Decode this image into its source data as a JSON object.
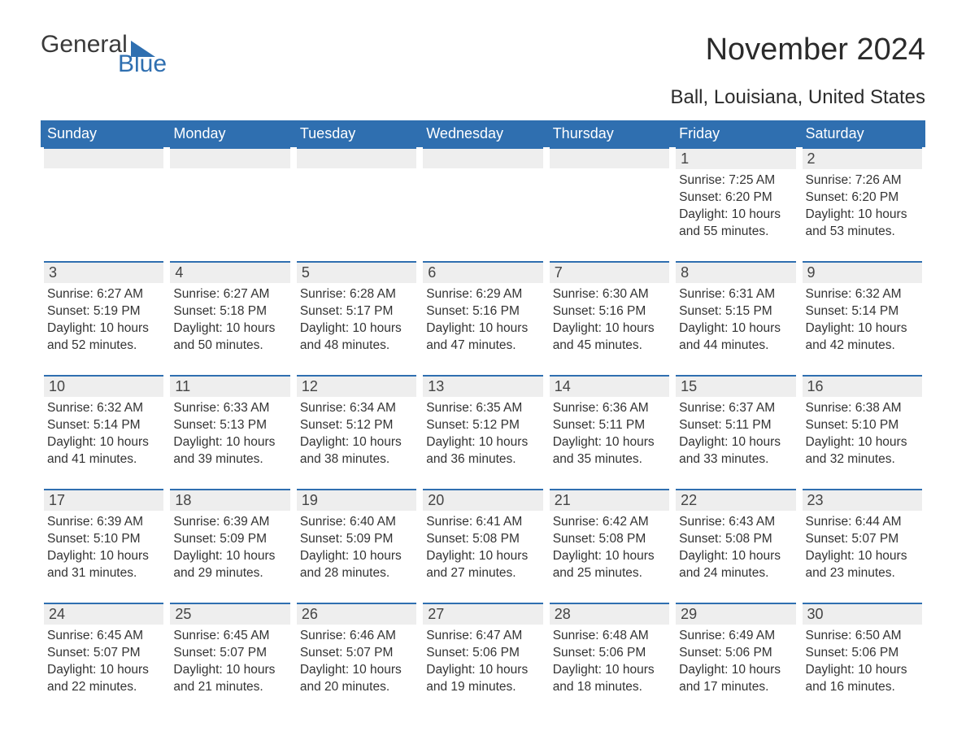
{
  "logo": {
    "word1": "General",
    "word2": "Blue"
  },
  "title": "November 2024",
  "location": "Ball, Louisiana, United States",
  "colors": {
    "header_bg": "#2f6fb0",
    "header_text": "#ffffff",
    "daynum_bg": "#eeeeee",
    "border": "#2f6fb0",
    "page_bg": "#ffffff",
    "text": "#333333"
  },
  "typography": {
    "title_fontsize": 38,
    "location_fontsize": 24,
    "header_fontsize": 18,
    "body_fontsize": 15.5
  },
  "layout": {
    "columns": 7,
    "rows": 5
  },
  "weekdays": [
    "Sunday",
    "Monday",
    "Tuesday",
    "Wednesday",
    "Thursday",
    "Friday",
    "Saturday"
  ],
  "weeks": [
    [
      null,
      null,
      null,
      null,
      null,
      {
        "day": "1",
        "sunrise": "7:25 AM",
        "sunset": "6:20 PM",
        "daylight": "10 hours and 55 minutes."
      },
      {
        "day": "2",
        "sunrise": "7:26 AM",
        "sunset": "6:20 PM",
        "daylight": "10 hours and 53 minutes."
      }
    ],
    [
      {
        "day": "3",
        "sunrise": "6:27 AM",
        "sunset": "5:19 PM",
        "daylight": "10 hours and 52 minutes."
      },
      {
        "day": "4",
        "sunrise": "6:27 AM",
        "sunset": "5:18 PM",
        "daylight": "10 hours and 50 minutes."
      },
      {
        "day": "5",
        "sunrise": "6:28 AM",
        "sunset": "5:17 PM",
        "daylight": "10 hours and 48 minutes."
      },
      {
        "day": "6",
        "sunrise": "6:29 AM",
        "sunset": "5:16 PM",
        "daylight": "10 hours and 47 minutes."
      },
      {
        "day": "7",
        "sunrise": "6:30 AM",
        "sunset": "5:16 PM",
        "daylight": "10 hours and 45 minutes."
      },
      {
        "day": "8",
        "sunrise": "6:31 AM",
        "sunset": "5:15 PM",
        "daylight": "10 hours and 44 minutes."
      },
      {
        "day": "9",
        "sunrise": "6:32 AM",
        "sunset": "5:14 PM",
        "daylight": "10 hours and 42 minutes."
      }
    ],
    [
      {
        "day": "10",
        "sunrise": "6:32 AM",
        "sunset": "5:14 PM",
        "daylight": "10 hours and 41 minutes."
      },
      {
        "day": "11",
        "sunrise": "6:33 AM",
        "sunset": "5:13 PM",
        "daylight": "10 hours and 39 minutes."
      },
      {
        "day": "12",
        "sunrise": "6:34 AM",
        "sunset": "5:12 PM",
        "daylight": "10 hours and 38 minutes."
      },
      {
        "day": "13",
        "sunrise": "6:35 AM",
        "sunset": "5:12 PM",
        "daylight": "10 hours and 36 minutes."
      },
      {
        "day": "14",
        "sunrise": "6:36 AM",
        "sunset": "5:11 PM",
        "daylight": "10 hours and 35 minutes."
      },
      {
        "day": "15",
        "sunrise": "6:37 AM",
        "sunset": "5:11 PM",
        "daylight": "10 hours and 33 minutes."
      },
      {
        "day": "16",
        "sunrise": "6:38 AM",
        "sunset": "5:10 PM",
        "daylight": "10 hours and 32 minutes."
      }
    ],
    [
      {
        "day": "17",
        "sunrise": "6:39 AM",
        "sunset": "5:10 PM",
        "daylight": "10 hours and 31 minutes."
      },
      {
        "day": "18",
        "sunrise": "6:39 AM",
        "sunset": "5:09 PM",
        "daylight": "10 hours and 29 minutes."
      },
      {
        "day": "19",
        "sunrise": "6:40 AM",
        "sunset": "5:09 PM",
        "daylight": "10 hours and 28 minutes."
      },
      {
        "day": "20",
        "sunrise": "6:41 AM",
        "sunset": "5:08 PM",
        "daylight": "10 hours and 27 minutes."
      },
      {
        "day": "21",
        "sunrise": "6:42 AM",
        "sunset": "5:08 PM",
        "daylight": "10 hours and 25 minutes."
      },
      {
        "day": "22",
        "sunrise": "6:43 AM",
        "sunset": "5:08 PM",
        "daylight": "10 hours and 24 minutes."
      },
      {
        "day": "23",
        "sunrise": "6:44 AM",
        "sunset": "5:07 PM",
        "daylight": "10 hours and 23 minutes."
      }
    ],
    [
      {
        "day": "24",
        "sunrise": "6:45 AM",
        "sunset": "5:07 PM",
        "daylight": "10 hours and 22 minutes."
      },
      {
        "day": "25",
        "sunrise": "6:45 AM",
        "sunset": "5:07 PM",
        "daylight": "10 hours and 21 minutes."
      },
      {
        "day": "26",
        "sunrise": "6:46 AM",
        "sunset": "5:07 PM",
        "daylight": "10 hours and 20 minutes."
      },
      {
        "day": "27",
        "sunrise": "6:47 AM",
        "sunset": "5:06 PM",
        "daylight": "10 hours and 19 minutes."
      },
      {
        "day": "28",
        "sunrise": "6:48 AM",
        "sunset": "5:06 PM",
        "daylight": "10 hours and 18 minutes."
      },
      {
        "day": "29",
        "sunrise": "6:49 AM",
        "sunset": "5:06 PM",
        "daylight": "10 hours and 17 minutes."
      },
      {
        "day": "30",
        "sunrise": "6:50 AM",
        "sunset": "5:06 PM",
        "daylight": "10 hours and 16 minutes."
      }
    ]
  ],
  "labels": {
    "sunrise": "Sunrise: ",
    "sunset": "Sunset: ",
    "daylight": "Daylight: "
  }
}
